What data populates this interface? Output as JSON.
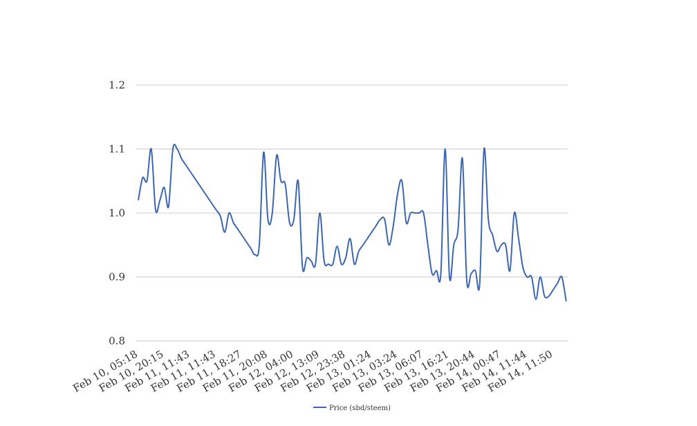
{
  "chart_data": {
    "type": "line",
    "categories": [
      "Feb 10, 05:18",
      null,
      null,
      null,
      null,
      null,
      "Feb 10, 20:15",
      null,
      null,
      null,
      null,
      null,
      "Feb 11, 11:43",
      null,
      null,
      null,
      null,
      null,
      "Feb 11, 11:43",
      null,
      null,
      null,
      null,
      null,
      "Feb 11, 18:27",
      null,
      null,
      null,
      null,
      null,
      "Feb 11, 20:08",
      null,
      null,
      null,
      null,
      null,
      "Feb 12, 04:00",
      null,
      null,
      null,
      null,
      null,
      "Feb 12, 13:09",
      null,
      null,
      null,
      null,
      null,
      "Feb 12, 23:38",
      null,
      null,
      null,
      null,
      null,
      "Feb 13, 01:24",
      null,
      null,
      null,
      null,
      null,
      "Feb 13, 03:24",
      null,
      null,
      null,
      null,
      null,
      "Feb 13, 06:07",
      null,
      null,
      null,
      null,
      null,
      "Feb 13, 16:21",
      null,
      null,
      null,
      null,
      null,
      "Feb 13, 20:44",
      null,
      null,
      null,
      null,
      null,
      "Feb 14, 00:47",
      null,
      null,
      null,
      null,
      null,
      "Feb 14, 11:44",
      null,
      null,
      null,
      null,
      null,
      "Feb 14, 11:50",
      null,
      null,
      null
    ],
    "series": [
      {
        "name": "Price (sbd/steem)",
        "color": "#3a66b0",
        "values": [
          1.02,
          1.055,
          1.05,
          1.1,
          1.005,
          1.02,
          1.04,
          1.01,
          1.1,
          1.1,
          1.085,
          1.075,
          1.065,
          1.055,
          1.045,
          1.035,
          1.025,
          1.015,
          1.005,
          0.995,
          0.97,
          1.0,
          0.985,
          0.975,
          0.965,
          0.955,
          0.945,
          0.935,
          0.95,
          1.095,
          0.99,
          1.0,
          1.09,
          1.05,
          1.045,
          0.985,
          0.99,
          1.05,
          0.915,
          0.93,
          0.925,
          0.92,
          1.0,
          0.925,
          0.92,
          0.92,
          0.948,
          0.92,
          0.93,
          0.96,
          0.92,
          0.94,
          0.95,
          0.96,
          0.97,
          0.98,
          0.99,
          0.99,
          0.95,
          0.98,
          1.03,
          1.05,
          0.985,
          1.0,
          1.0,
          1.0,
          1.0,
          0.95,
          0.905,
          0.91,
          0.905,
          1.1,
          0.9,
          0.95,
          0.975,
          1.085,
          0.895,
          0.905,
          0.91,
          0.89,
          1.1,
          0.99,
          0.965,
          0.94,
          0.95,
          0.95,
          0.91,
          1.0,
          0.96,
          0.915,
          0.9,
          0.9,
          0.865,
          0.9,
          0.87,
          0.87,
          0.88,
          0.89,
          0.9,
          0.862
        ]
      }
    ],
    "ylim": [
      0.8,
      1.2
    ],
    "yticks": [
      0.8,
      0.9,
      {
        "value": 1,
        "label": "1.0"
      },
      1.1,
      1.2
    ],
    "grid": true,
    "legend": "bottom"
  }
}
